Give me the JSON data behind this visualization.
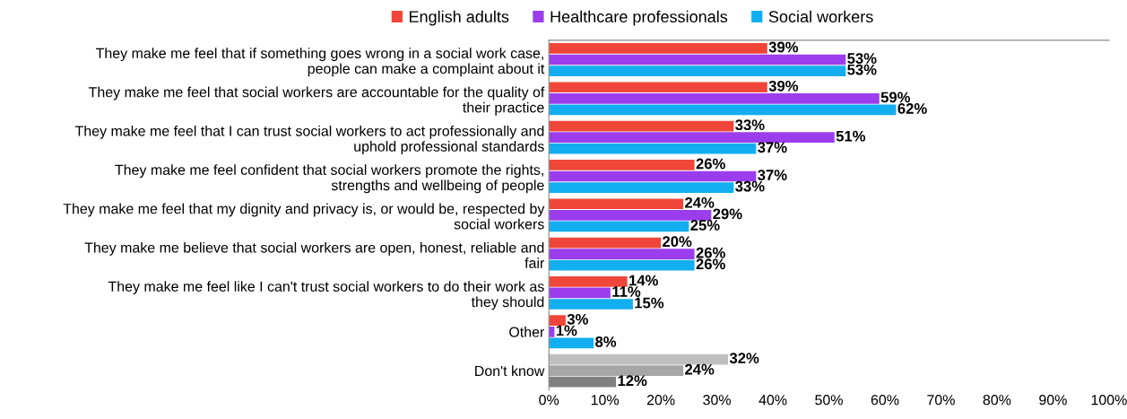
{
  "chart_data": {
    "type": "bar",
    "orientation": "horizontal",
    "categories": [
      "They make me feel that if something goes wrong in a social work case, people can make a complaint about it",
      "They make me feel that social workers are accountable for the quality of their practice",
      "They make me feel that I can trust social workers to act professionally and uphold professional standards",
      "They make me feel confident that social workers promote the rights, strengths and wellbeing of people",
      "They make me feel that my dignity and privacy is, or would be, respected by social workers",
      "They make me believe that social workers are open, honest, reliable and fair",
      "They make me feel like I can't trust social workers to do their work as they should",
      "Other",
      "Don't know"
    ],
    "series": [
      {
        "name": "English adults",
        "color": "#f0463a",
        "colors": [
          "#f0463a",
          "#f0463a",
          "#f0463a",
          "#f0463a",
          "#f0463a",
          "#f0463a",
          "#f0463a",
          "#f0463a",
          "#bfbfbf"
        ],
        "values": [
          39,
          39,
          33,
          26,
          24,
          20,
          14,
          3,
          32
        ],
        "value_labels": [
          "39%",
          "39%",
          "33%",
          "26%",
          "24%",
          "20%",
          "14%",
          "3%",
          "32%"
        ]
      },
      {
        "name": "Healthcare professionals",
        "color": "#9b3ded",
        "colors": [
          "#9b3ded",
          "#9b3ded",
          "#9b3ded",
          "#9b3ded",
          "#9b3ded",
          "#9b3ded",
          "#9b3ded",
          "#9b3ded",
          "#a6a6a6"
        ],
        "values": [
          53,
          59,
          51,
          37,
          29,
          26,
          11,
          1,
          24
        ],
        "value_labels": [
          "53%",
          "59%",
          "51%",
          "37%",
          "29%",
          "26%",
          "11%",
          "1%",
          "24%"
        ]
      },
      {
        "name": "Social workers",
        "color": "#12aef0",
        "colors": [
          "#12aef0",
          "#12aef0",
          "#12aef0",
          "#12aef0",
          "#12aef0",
          "#12aef0",
          "#12aef0",
          "#12aef0",
          "#808080"
        ],
        "values": [
          53,
          62,
          37,
          33,
          25,
          26,
          15,
          8,
          12
        ],
        "value_labels": [
          "53%",
          "62%",
          "37%",
          "33%",
          "25%",
          "26%",
          "15%",
          "8%",
          "12%"
        ]
      }
    ],
    "xlim": [
      0,
      100
    ],
    "xticks": [
      {
        "value": 0,
        "label": "0%"
      },
      {
        "value": 10,
        "label": "10%"
      },
      {
        "value": 20,
        "label": "20%"
      },
      {
        "value": 30,
        "label": "30%"
      },
      {
        "value": 40,
        "label": "40%"
      },
      {
        "value": 50,
        "label": "50%"
      },
      {
        "value": 60,
        "label": "60%"
      },
      {
        "value": 70,
        "label": "70%"
      },
      {
        "value": 80,
        "label": "80%"
      },
      {
        "value": 90,
        "label": "90%"
      },
      {
        "value": 100,
        "label": "100%"
      }
    ],
    "legend": "top",
    "grid": false
  }
}
